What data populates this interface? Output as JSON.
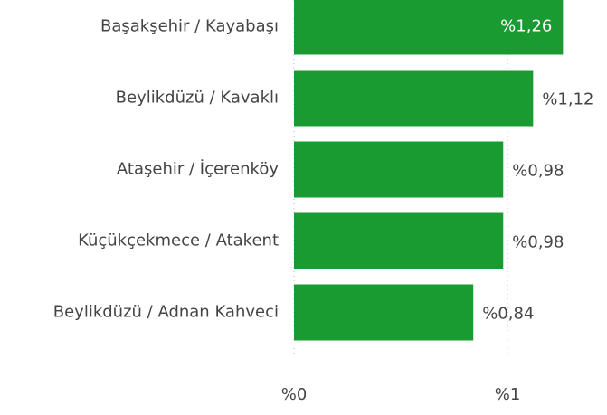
{
  "chart_data": {
    "type": "hbar",
    "categories": [
      "Başakşehir / Kayabaşı",
      "Beylikdüzü / Kavaklı",
      "Ataşehir / İçerenköy",
      "Küçükçekmece / Atakent",
      "Beylikdüzü / Adnan Kahveci"
    ],
    "values": [
      1.26,
      1.12,
      0.98,
      0.98,
      0.84
    ],
    "value_labels": [
      "%1,26",
      "%1,12",
      "%0,98",
      "%0,98",
      "%0,84"
    ],
    "color": "#1a9b32",
    "xlim": [
      0,
      1.4
    ],
    "xticks": [
      {
        "value": 0,
        "label": "%0"
      },
      {
        "value": 1,
        "label": "%1"
      }
    ],
    "grid": true
  }
}
